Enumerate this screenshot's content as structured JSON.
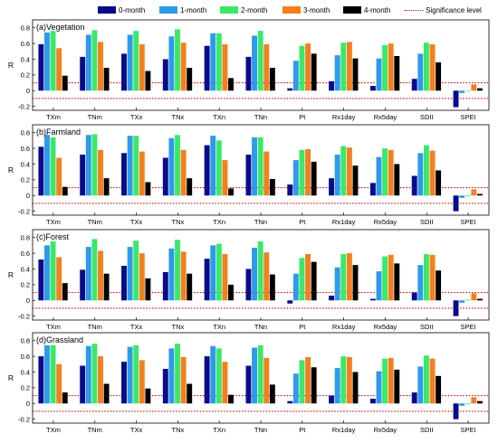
{
  "legend": [
    {
      "label": "0-month",
      "color": "#0a0a8c",
      "kind": "bar"
    },
    {
      "label": "1-month",
      "color": "#2e9aea",
      "kind": "bar"
    },
    {
      "label": "2-month",
      "color": "#3ae86a",
      "kind": "bar"
    },
    {
      "label": "3-month",
      "color": "#f57f1e",
      "kind": "bar"
    },
    {
      "label": "4-month",
      "color": "#000000",
      "kind": "bar"
    },
    {
      "label": "Significance level",
      "color": "#e60000",
      "kind": "dash"
    }
  ],
  "chart_data": [
    {
      "type": "bar",
      "title": "(a)Vegetation",
      "ylabel": "R",
      "ylim": [
        -0.25,
        0.9
      ],
      "yticks": [
        -0.2,
        0,
        0.2,
        0.4,
        0.6,
        0.8
      ],
      "significance": [
        0.1,
        -0.1
      ],
      "categories": [
        "TXm",
        "TNm",
        "TXx",
        "TNx",
        "TXn",
        "TNn",
        "Pt",
        "Rx1day",
        "Rx5day",
        "SDII",
        "SPEI"
      ],
      "series": [
        {
          "name": "0-month",
          "values": [
            0.59,
            0.43,
            0.47,
            0.4,
            0.57,
            0.43,
            0.03,
            0.12,
            0.06,
            0.15,
            -0.21
          ]
        },
        {
          "name": "1-month",
          "values": [
            0.74,
            0.71,
            0.71,
            0.69,
            0.73,
            0.7,
            0.38,
            0.45,
            0.41,
            0.47,
            -0.03
          ]
        },
        {
          "name": "2-month",
          "values": [
            0.76,
            0.77,
            0.76,
            0.78,
            0.73,
            0.76,
            0.57,
            0.61,
            0.58,
            0.61,
            0.0
          ]
        },
        {
          "name": "3-month",
          "values": [
            0.54,
            0.62,
            0.59,
            0.61,
            0.59,
            0.59,
            0.6,
            0.62,
            0.6,
            0.59,
            0.08
          ]
        },
        {
          "name": "4-month",
          "values": [
            0.19,
            0.29,
            0.25,
            0.29,
            0.16,
            0.29,
            0.47,
            0.41,
            0.44,
            0.36,
            0.03
          ]
        }
      ]
    },
    {
      "type": "bar",
      "title": "(b)Farmland",
      "ylabel": "R",
      "ylim": [
        -0.25,
        0.9
      ],
      "yticks": [
        -0.2,
        0,
        0.2,
        0.4,
        0.6,
        0.8
      ],
      "significance": [
        0.1,
        -0.1
      ],
      "categories": [
        "TXm",
        "TNm",
        "TXx",
        "TNx",
        "TXn",
        "TNn",
        "Pt",
        "Rx1day",
        "Rx5day",
        "SDII",
        "SPEI"
      ],
      "series": [
        {
          "name": "0-month",
          "values": [
            0.62,
            0.52,
            0.54,
            0.48,
            0.64,
            0.52,
            0.14,
            0.22,
            0.16,
            0.25,
            -0.2
          ]
        },
        {
          "name": "1-month",
          "values": [
            0.77,
            0.77,
            0.76,
            0.73,
            0.76,
            0.74,
            0.45,
            0.52,
            0.49,
            0.54,
            -0.03
          ]
        },
        {
          "name": "2-month",
          "values": [
            0.74,
            0.78,
            0.76,
            0.77,
            0.7,
            0.74,
            0.58,
            0.63,
            0.6,
            0.64,
            -0.01
          ]
        },
        {
          "name": "3-month",
          "values": [
            0.48,
            0.58,
            0.56,
            0.58,
            0.45,
            0.56,
            0.59,
            0.61,
            0.58,
            0.57,
            0.08
          ]
        },
        {
          "name": "4-month",
          "values": [
            0.11,
            0.22,
            0.17,
            0.22,
            0.09,
            0.21,
            0.43,
            0.38,
            0.4,
            0.32,
            0.02
          ]
        }
      ]
    },
    {
      "type": "bar",
      "title": "(c)Forest",
      "ylabel": "R",
      "ylim": [
        -0.25,
        0.9
      ],
      "yticks": [
        -0.2,
        0,
        0.2,
        0.4,
        0.6,
        0.8
      ],
      "significance": [
        0.1,
        -0.1
      ],
      "categories": [
        "TXm",
        "TNm",
        "TXx",
        "TNx",
        "TXn",
        "TNn",
        "Pt",
        "Rx1day",
        "Rx5day",
        "SDII",
        "SPEI"
      ],
      "series": [
        {
          "name": "0-month",
          "values": [
            0.52,
            0.39,
            0.44,
            0.36,
            0.53,
            0.4,
            -0.04,
            0.06,
            0.02,
            0.1,
            -0.2
          ]
        },
        {
          "name": "1-month",
          "values": [
            0.7,
            0.68,
            0.68,
            0.66,
            0.7,
            0.67,
            0.34,
            0.42,
            0.37,
            0.45,
            -0.03
          ]
        },
        {
          "name": "2-month",
          "values": [
            0.75,
            0.78,
            0.76,
            0.77,
            0.72,
            0.75,
            0.54,
            0.59,
            0.56,
            0.59,
            0.01
          ]
        },
        {
          "name": "3-month",
          "values": [
            0.55,
            0.63,
            0.6,
            0.62,
            0.59,
            0.61,
            0.59,
            0.6,
            0.58,
            0.58,
            0.09
          ]
        },
        {
          "name": "4-month",
          "values": [
            0.22,
            0.34,
            0.28,
            0.34,
            0.2,
            0.33,
            0.49,
            0.45,
            0.47,
            0.38,
            0.02
          ]
        }
      ]
    },
    {
      "type": "bar",
      "title": "(d)Grassland",
      "ylabel": "R",
      "ylim": [
        -0.25,
        0.9
      ],
      "yticks": [
        -0.2,
        0,
        0.2,
        0.4,
        0.6,
        0.8
      ],
      "significance": [
        0.1,
        -0.1
      ],
      "categories": [
        "TXm",
        "TNm",
        "TXx",
        "TNx",
        "TXn",
        "TNn",
        "Pt",
        "Rx1day",
        "Rx5day",
        "SDII",
        "SPEI"
      ],
      "series": [
        {
          "name": "0-month",
          "values": [
            0.6,
            0.48,
            0.53,
            0.44,
            0.6,
            0.48,
            0.03,
            0.1,
            0.06,
            0.14,
            -0.2
          ]
        },
        {
          "name": "1-month",
          "values": [
            0.74,
            0.73,
            0.72,
            0.7,
            0.73,
            0.71,
            0.38,
            0.45,
            0.41,
            0.47,
            -0.03
          ]
        },
        {
          "name": "2-month",
          "values": [
            0.74,
            0.76,
            0.74,
            0.76,
            0.7,
            0.74,
            0.55,
            0.6,
            0.57,
            0.61,
            -0.01
          ]
        },
        {
          "name": "3-month",
          "values": [
            0.5,
            0.6,
            0.55,
            0.59,
            0.53,
            0.58,
            0.59,
            0.59,
            0.58,
            0.57,
            0.08
          ]
        },
        {
          "name": "4-month",
          "values": [
            0.14,
            0.25,
            0.19,
            0.25,
            0.11,
            0.24,
            0.46,
            0.4,
            0.43,
            0.35,
            0.03
          ]
        }
      ]
    }
  ]
}
